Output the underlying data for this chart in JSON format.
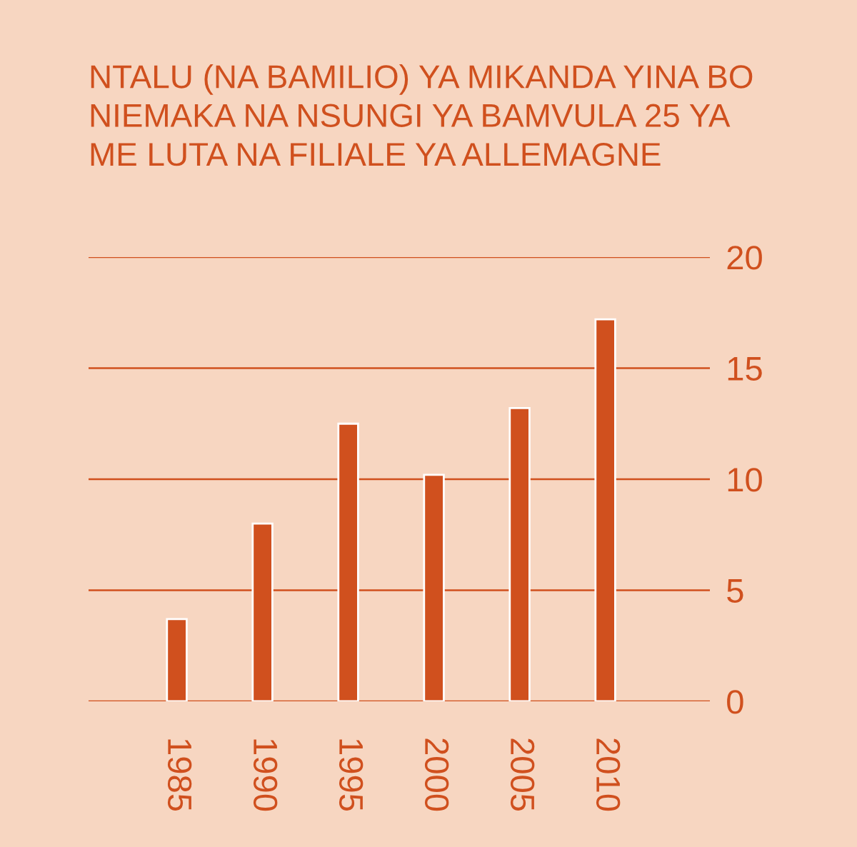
{
  "chart_data": {
    "type": "bar",
    "title": "NTALU (NA BAMILIO) YA MIKANDA YINA BO\nNIEMAKA NA NSUNGI YA BAMVULA 25 YA\nME LUTA NA FILIALE YA ALLEMAGNE",
    "categories": [
      "1985",
      "1990",
      "1995",
      "2000",
      "2005",
      "2010"
    ],
    "values": [
      3.7,
      8.0,
      12.5,
      10.2,
      13.2,
      17.2
    ],
    "color": "#d0501e",
    "ylim": [
      0,
      20
    ],
    "yticks": [
      0,
      5,
      10,
      15,
      20
    ],
    "grid": "y"
  }
}
